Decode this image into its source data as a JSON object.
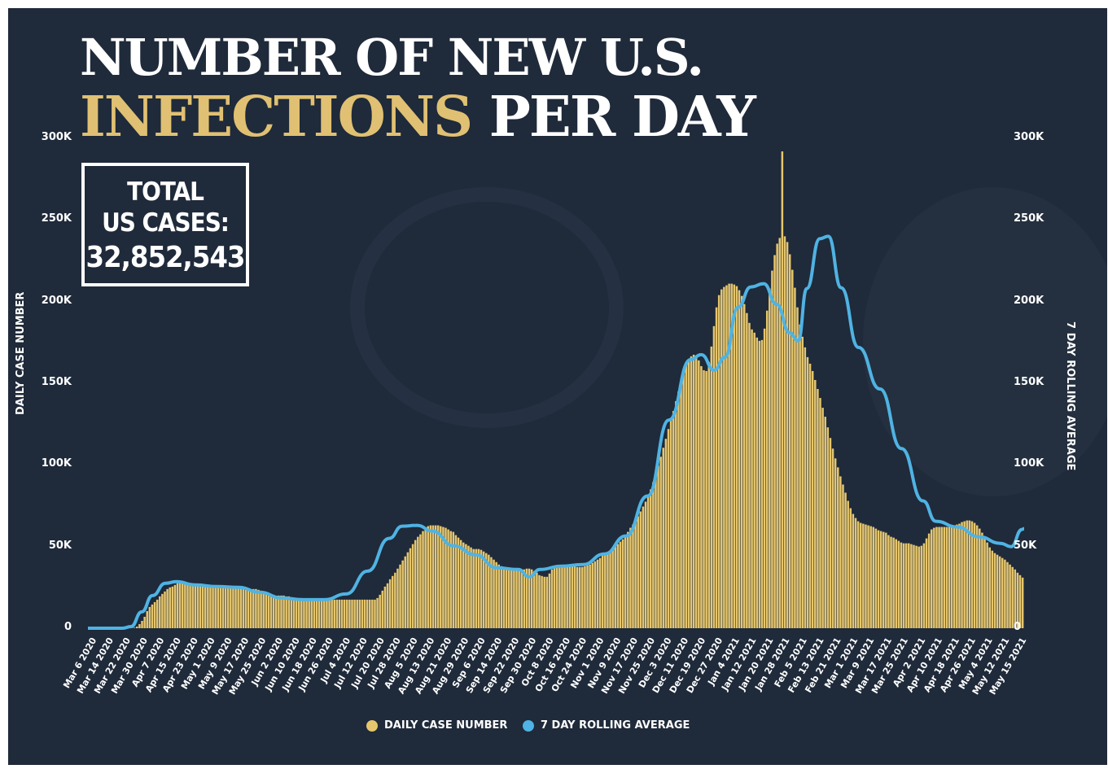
{
  "header": {
    "title_line1": "NUMBER OF NEW U.S.",
    "title_highlight": "INFECTIONS",
    "title_rest": "PER DAY"
  },
  "total_box": {
    "line1": "TOTAL",
    "line2": "US CASES:",
    "value": "32,852,543"
  },
  "colors": {
    "background": "#1f2a3a",
    "bars": "#e6c66d",
    "line": "#4fb3e3",
    "highlight": "#e0c072"
  },
  "legend": {
    "bars_label": "DAILY CASE NUMBER",
    "line_label": "7 DAY ROLLING AVERAGE"
  },
  "chart_data": {
    "type": "bar",
    "title": "NUMBER OF NEW U.S. INFECTIONS PER DAY",
    "ylabel": "DAILY CASE NUMBER",
    "ylabel_right": "7 DAY ROLLING AVERAGE",
    "ylim": [
      0,
      300000
    ],
    "y_ticks": [
      "0",
      "50K",
      "100K",
      "150K",
      "200K",
      "250K",
      "300K"
    ],
    "x_tick_labels": [
      "Mar 6 2020",
      "Mar 14 2020",
      "Mar 22 2020",
      "Mar 30 2020",
      "Apr 7 2020",
      "Apr 15 2020",
      "Apr 23 2020",
      "May 1 2020",
      "May 9 2020",
      "May 17 2020",
      "May 25 2020",
      "Jun 2 2020",
      "Jun 10 2020",
      "Jun 18 2020",
      "Jun 26 2020",
      "Jul 4 2020",
      "Jul 12 2020",
      "Jul 20 2020",
      "Jul 28 2020",
      "Aug 5 2020",
      "Aug 13 2020",
      "Aug 21 2020",
      "Aug 29 2020",
      "Sep 6 2020",
      "Sep 14 2020",
      "Sep 22 2020",
      "Sep 30 2020",
      "Oct 8 2020",
      "Oct 16 2020",
      "Oct 24 2020",
      "Nov 1 2020",
      "Nov 9 2020",
      "Nov 17 2020",
      "Nov 25 2020",
      "Dec 3 2020",
      "Dec 11 2020",
      "Dec 19 2020",
      "Dec 27 2020",
      "Jan 4 2021",
      "Jan 12 2021",
      "Jan 20 2021",
      "Jan 28 2021",
      "Feb 5 2021",
      "Feb 13 2021",
      "Feb 21 2021",
      "Mar 1 2021",
      "Mar 9 2021",
      "Mar 17 2021",
      "Mar 25 2021",
      "Apr 2 2021",
      "Apr 10 2021",
      "Apr 18 2021",
      "Apr 26 2021",
      "May 4 2021",
      "May 12 2021",
      "May 15 2021"
    ],
    "x_start": "2020-03-06",
    "x_end": "2021-05-15",
    "series": [
      {
        "name": "DAILY CASE NUMBER",
        "type": "bar",
        "daily_values": [
          0,
          0,
          0,
          0,
          0,
          0,
          0,
          0,
          0,
          0,
          0,
          0,
          0,
          0,
          0,
          0,
          0,
          100,
          300,
          1000,
          2500,
          4500,
          7000,
          10500,
          13000,
          14500,
          16000,
          17500,
          19500,
          21000,
          22500,
          24000,
          25000,
          25500,
          26500,
          27500,
          28500,
          28500,
          28000,
          27500,
          27500,
          27000,
          26500,
          26000,
          25500,
          26000,
          26500,
          26500,
          26000,
          25500,
          25500,
          25500,
          25500,
          25500,
          25500,
          26000,
          26000,
          25500,
          25500,
          25000,
          24500,
          24000,
          23500,
          23500,
          23500,
          24000,
          24000,
          23500,
          23000,
          22500,
          22000,
          21500,
          21000,
          20500,
          20000,
          20000,
          20000,
          20000,
          19500,
          19500,
          19000,
          18500,
          18500,
          18000,
          18000,
          18000,
          17500,
          17500,
          17500,
          17500,
          17500,
          17500,
          17500,
          17500,
          17500,
          17500,
          17500,
          17500,
          17500,
          17500,
          17500,
          17500,
          17500,
          17500,
          17500,
          17500,
          17500,
          17500,
          17500,
          17500,
          17500,
          17500,
          17500,
          17500,
          18500,
          20500,
          23000,
          25500,
          27500,
          30000,
          32000,
          34000,
          36500,
          39000,
          41500,
          44000,
          46500,
          49000,
          51500,
          54000,
          56000,
          57500,
          59500,
          61500,
          62500,
          63000,
          63000,
          63000,
          63000,
          62500,
          62000,
          61500,
          60500,
          59500,
          59000,
          57000,
          55500,
          54000,
          52500,
          51500,
          50500,
          49500,
          48500,
          48500,
          48500,
          48000,
          47000,
          46000,
          45000,
          43500,
          42000,
          40500,
          39000,
          38000,
          37000,
          36500,
          36500,
          36500,
          36500,
          36500,
          36000,
          36000,
          36000,
          36500,
          36500,
          36000,
          35000,
          34000,
          32500,
          32000,
          31500,
          31500,
          33500,
          36000,
          37500,
          38000,
          38000,
          38000,
          38500,
          38500,
          38500,
          38500,
          38000,
          37500,
          37500,
          37500,
          38000,
          38500,
          39000,
          40000,
          41000,
          42000,
          43000,
          44500,
          45500,
          46500,
          47500,
          48500,
          50000,
          51500,
          53000,
          54500,
          56500,
          59000,
          61500,
          63500,
          66000,
          68500,
          71500,
          74500,
          77500,
          81000,
          85000,
          89500,
          94000,
          99500,
          105000,
          110500,
          116000,
          122000,
          127500,
          133000,
          139000,
          145000,
          151000,
          156500,
          161000,
          164500,
          166500,
          167500,
          166500,
          164000,
          160500,
          158000,
          157500,
          163000,
          172500,
          185000,
          196500,
          204000,
          207500,
          209000,
          210000,
          211000,
          211000,
          210500,
          209500,
          207000,
          203500,
          198500,
          193000,
          187000,
          183000,
          181000,
          178000,
          176000,
          176500,
          183500,
          194500,
          208000,
          219000,
          228500,
          235500,
          239000,
          240500,
          240000,
          236500,
          229000,
          219500,
          208500,
          196500,
          186000,
          178500,
          172000,
          166000,
          162000,
          157500,
          152000,
          146500,
          141000,
          135000,
          129500,
          123000,
          116500,
          110000,
          104000,
          98500,
          93000,
          88000,
          83000,
          78000,
          73500,
          70000,
          67500,
          65500,
          64500,
          64000,
          63500,
          63000,
          62500,
          62000,
          61000,
          60000,
          59500,
          59000,
          58500,
          57000,
          56000,
          55500,
          54500,
          53500,
          52500,
          52000,
          52000,
          52000,
          51500,
          51000,
          50500,
          50000,
          50500,
          52000,
          55000,
          58000,
          60500,
          61500,
          62000,
          62000,
          62000,
          62000,
          62000,
          62000,
          62000,
          62500,
          63500,
          64000,
          65000,
          65500,
          66000,
          66000,
          65500,
          64500,
          63000,
          61000,
          58500,
          55500,
          52500,
          49500,
          47500,
          46000,
          45000,
          44000,
          43000,
          42000,
          40500,
          39000,
          37500,
          36000,
          34000,
          32500,
          31000
        ],
        "peak_value": 292000
      },
      {
        "name": "7 DAY ROLLING AVERAGE",
        "type": "line",
        "points": [
          [
            "2020-03-06",
            0
          ],
          [
            "2020-03-22",
            0
          ],
          [
            "2020-03-26",
            1000
          ],
          [
            "2020-03-31",
            10000
          ],
          [
            "2020-04-05",
            20000
          ],
          [
            "2020-04-11",
            27500
          ],
          [
            "2020-04-16",
            28500
          ],
          [
            "2020-04-25",
            26500
          ],
          [
            "2020-05-05",
            25500
          ],
          [
            "2020-05-15",
            25000
          ],
          [
            "2020-05-25",
            22000
          ],
          [
            "2020-06-04",
            18500
          ],
          [
            "2020-06-14",
            17500
          ],
          [
            "2020-06-24",
            17500
          ],
          [
            "2020-07-04",
            21000
          ],
          [
            "2020-07-14",
            35000
          ],
          [
            "2020-07-24",
            55000
          ],
          [
            "2020-07-30",
            62500
          ],
          [
            "2020-08-06",
            63000
          ],
          [
            "2020-08-13",
            59500
          ],
          [
            "2020-08-23",
            50500
          ],
          [
            "2020-09-02",
            45000
          ],
          [
            "2020-09-12",
            37000
          ],
          [
            "2020-09-22",
            36000
          ],
          [
            "2020-09-27",
            31500
          ],
          [
            "2020-10-02",
            36000
          ],
          [
            "2020-10-12",
            38000
          ],
          [
            "2020-10-22",
            39000
          ],
          [
            "2020-11-01",
            45500
          ],
          [
            "2020-11-11",
            56500
          ],
          [
            "2020-11-21",
            81000
          ],
          [
            "2020-12-01",
            127500
          ],
          [
            "2020-12-11",
            164500
          ],
          [
            "2020-12-16",
            167500
          ],
          [
            "2020-12-22",
            158000
          ],
          [
            "2020-12-27",
            166000
          ],
          [
            "2021-01-02",
            196500
          ],
          [
            "2021-01-08",
            209000
          ],
          [
            "2021-01-14",
            211000
          ],
          [
            "2021-01-20",
            198500
          ],
          [
            "2021-01-26",
            181000
          ],
          [
            "2021-01-30",
            176000
          ],
          [
            "2021-02-03",
            208000
          ],
          [
            "2021-02-09",
            238500
          ],
          [
            "2021-02-13",
            240000
          ],
          [
            "2021-02-19",
            208500
          ],
          [
            "2021-02-27",
            172000
          ],
          [
            "2021-03-09",
            146500
          ],
          [
            "2021-03-19",
            110000
          ],
          [
            "2021-03-29",
            78000
          ],
          [
            "2021-04-04",
            65500
          ],
          [
            "2021-04-14",
            62000
          ],
          [
            "2021-04-24",
            56000
          ],
          [
            "2021-05-04",
            52000
          ],
          [
            "2021-05-09",
            50000
          ],
          [
            "2021-05-14",
            60500
          ],
          [
            "2021-05-15",
            61000
          ]
        ]
      }
    ],
    "grid": false,
    "legend_position": "bottom-center"
  }
}
